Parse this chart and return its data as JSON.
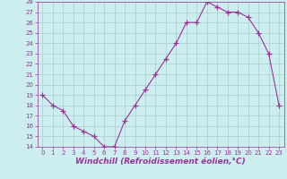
{
  "x": [
    0,
    1,
    2,
    3,
    4,
    5,
    6,
    7,
    8,
    9,
    10,
    11,
    12,
    13,
    14,
    15,
    16,
    17,
    18,
    19,
    20,
    21,
    22,
    23
  ],
  "y": [
    19,
    18,
    17.5,
    16,
    15.5,
    15,
    14,
    14,
    16.5,
    18,
    19.5,
    21,
    22.5,
    24,
    26,
    26,
    28,
    27.5,
    27,
    27,
    26.5,
    25,
    23,
    18
  ],
  "line_color": "#993399",
  "marker": "+",
  "marker_size": 4,
  "bg_color": "#cceeee",
  "grid_color": "#aacccc",
  "xlabel": "Windchill (Refroidissement éolien,°C)",
  "xlabel_color": "#993399",
  "ylim": [
    14,
    28
  ],
  "xlim": [
    -0.5,
    23.5
  ],
  "yticks": [
    14,
    15,
    16,
    17,
    18,
    19,
    20,
    21,
    22,
    23,
    24,
    25,
    26,
    27,
    28
  ],
  "xticks": [
    0,
    1,
    2,
    3,
    4,
    5,
    6,
    7,
    8,
    9,
    10,
    11,
    12,
    13,
    14,
    15,
    16,
    17,
    18,
    19,
    20,
    21,
    22,
    23
  ],
  "tick_color": "#993399",
  "tick_fontsize": 5,
  "xlabel_fontsize": 6.5
}
